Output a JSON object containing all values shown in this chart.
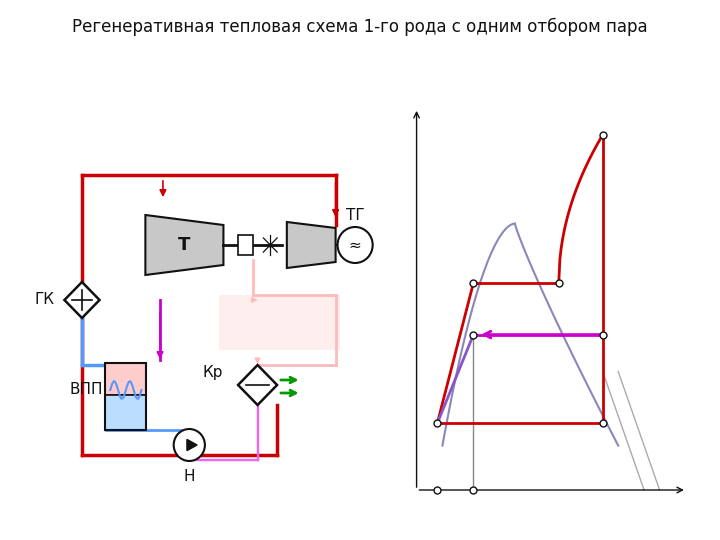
{
  "title": "Регенеративная тепловая схема 1-го рода с одним отбором пара",
  "title_fontsize": 12,
  "bg_color": "#ffffff",
  "red": "#cc0000",
  "pink": "#ffbbbb",
  "pink2": "#ffdddd",
  "blue": "#5599ff",
  "blue_light": "#aaccff",
  "magenta": "#cc00cc",
  "magenta_light": "#ee66ee",
  "green": "#009900",
  "gray_dark": "#666666",
  "gray_med": "#999999",
  "gray_light": "#bbbbbb",
  "dark": "#111111",
  "labels": {
    "GK": "ГК",
    "VPP": "ВПП",
    "T": "Т",
    "TG": "ТГ",
    "Kr": "Кр",
    "N": "Н"
  }
}
